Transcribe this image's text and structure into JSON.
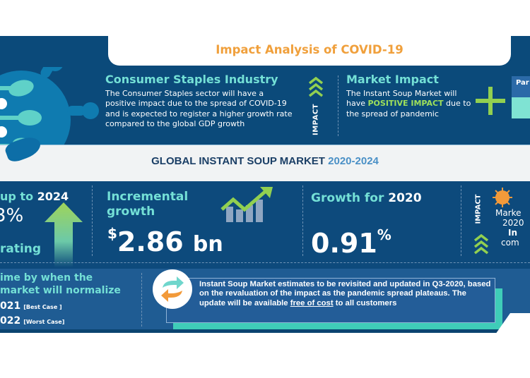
{
  "header": {
    "title": "Impact Analysis of COVID-19"
  },
  "consumer_staples": {
    "heading": "Consumer Staples Industry",
    "body": "The Consumer Staples sector will have a positive impact due to the spread of COVID-19 and is expected to register a higher growth rate compared to the global GDP growth",
    "impact_label": "IMPACT"
  },
  "market_impact": {
    "heading": "Market Impact",
    "body_pre": "The Instant Soup Market will have ",
    "body_highlight": "POSITIVE IMPACT",
    "body_post": " due to the spread of pandemic",
    "side_panel_label": "Par"
  },
  "banner": {
    "title": "GLOBAL INSTANT SOUP MARKET",
    "years": "2020-2024"
  },
  "kpis": {
    "cagr": {
      "head_pre": "up to ",
      "head_year": "2024",
      "value": "3%",
      "foot": "rating"
    },
    "incremental": {
      "head_line1": "Incremental",
      "head_line2": "growth",
      "currency": "$",
      "value": "2.86",
      "unit": "bn"
    },
    "growth_2020": {
      "head_pre": "Growth for ",
      "head_year": "2020",
      "value": "0.91",
      "unit": "%"
    },
    "market_2020": {
      "impact_label": "IMPACT",
      "line1": "Marke",
      "line2": "2020",
      "line3": "In",
      "line4": "com"
    }
  },
  "normalize": {
    "head_line1": "ime by when the",
    "head_line2": "market will normalize",
    "best_year": "021",
    "best_tag": "[Best Case ]",
    "worst_year": "022",
    "worst_tag": "[Worst Case]"
  },
  "note": {
    "text_main": "Instant Soup Market estimates to be revisited and updated in Q3-2020, based on the revaluation of the impact as the pandemic spread plateaus. The update will be available ",
    "link_text": "free of cost",
    "text_end": " to all customers"
  },
  "colors": {
    "navy": "#0b4a7a",
    "teal_heading": "#74e0d6",
    "orange_title": "#f0a03c",
    "green_accent": "#92d050",
    "highlight_green": "#9fe05a"
  }
}
